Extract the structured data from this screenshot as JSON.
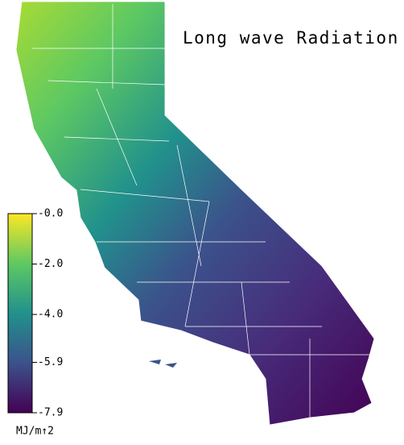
{
  "map": {
    "title": "Long wave Radiation",
    "colorbar": {
      "label": "MJ/m↑2",
      "clim": [
        -7.9,
        0
      ],
      "ticks": [
        {
          "value": 0,
          "label": "-0.0"
        },
        {
          "value": -2,
          "label": "-2.0"
        },
        {
          "value": -4,
          "label": "-4.0"
        },
        -5.9,
        -7.9
      ],
      "colormap": [
        "#440154",
        "#3b528b",
        "#21918c",
        "#5ec962",
        "#fde725"
      ]
    }
  }
}
